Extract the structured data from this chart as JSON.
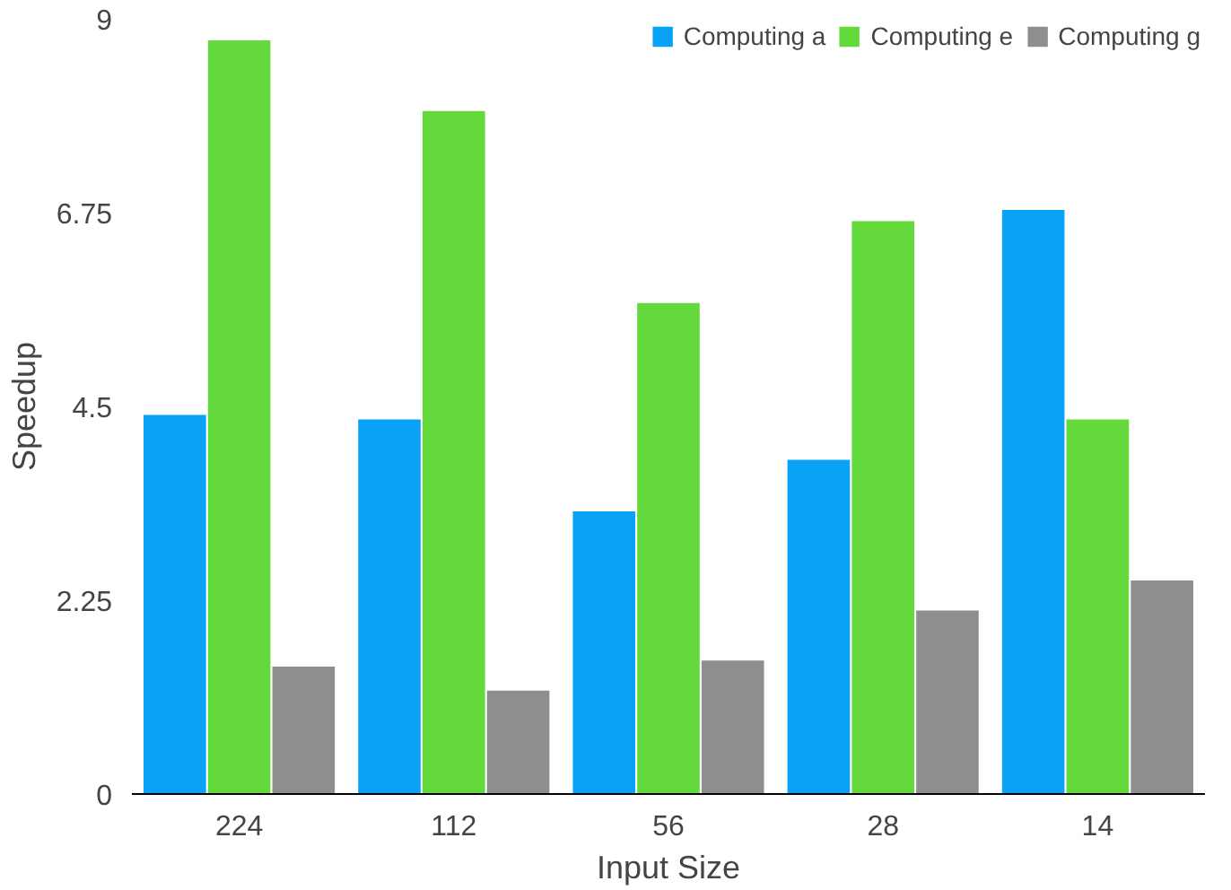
{
  "chart_data": {
    "type": "bar",
    "xlabel": "Input Size",
    "ylabel": "Speedup",
    "categories": [
      "224",
      "112",
      "56",
      "28",
      "14"
    ],
    "series": [
      {
        "name": "Computing a",
        "color": "#0aa2f7",
        "values": [
          4.4,
          4.35,
          3.28,
          3.88,
          6.78
        ]
      },
      {
        "name": "Computing e",
        "color": "#63d93b",
        "values": [
          8.75,
          7.93,
          5.7,
          6.65,
          4.35
        ]
      },
      {
        "name": "Computing g",
        "color": "#8e8e8e",
        "values": [
          1.48,
          1.2,
          1.55,
          2.13,
          2.48
        ]
      }
    ],
    "ylim": [
      0,
      9
    ],
    "yticks": [
      0,
      2.25,
      4.5,
      6.75,
      9
    ],
    "grid": false,
    "legend": "top right"
  }
}
